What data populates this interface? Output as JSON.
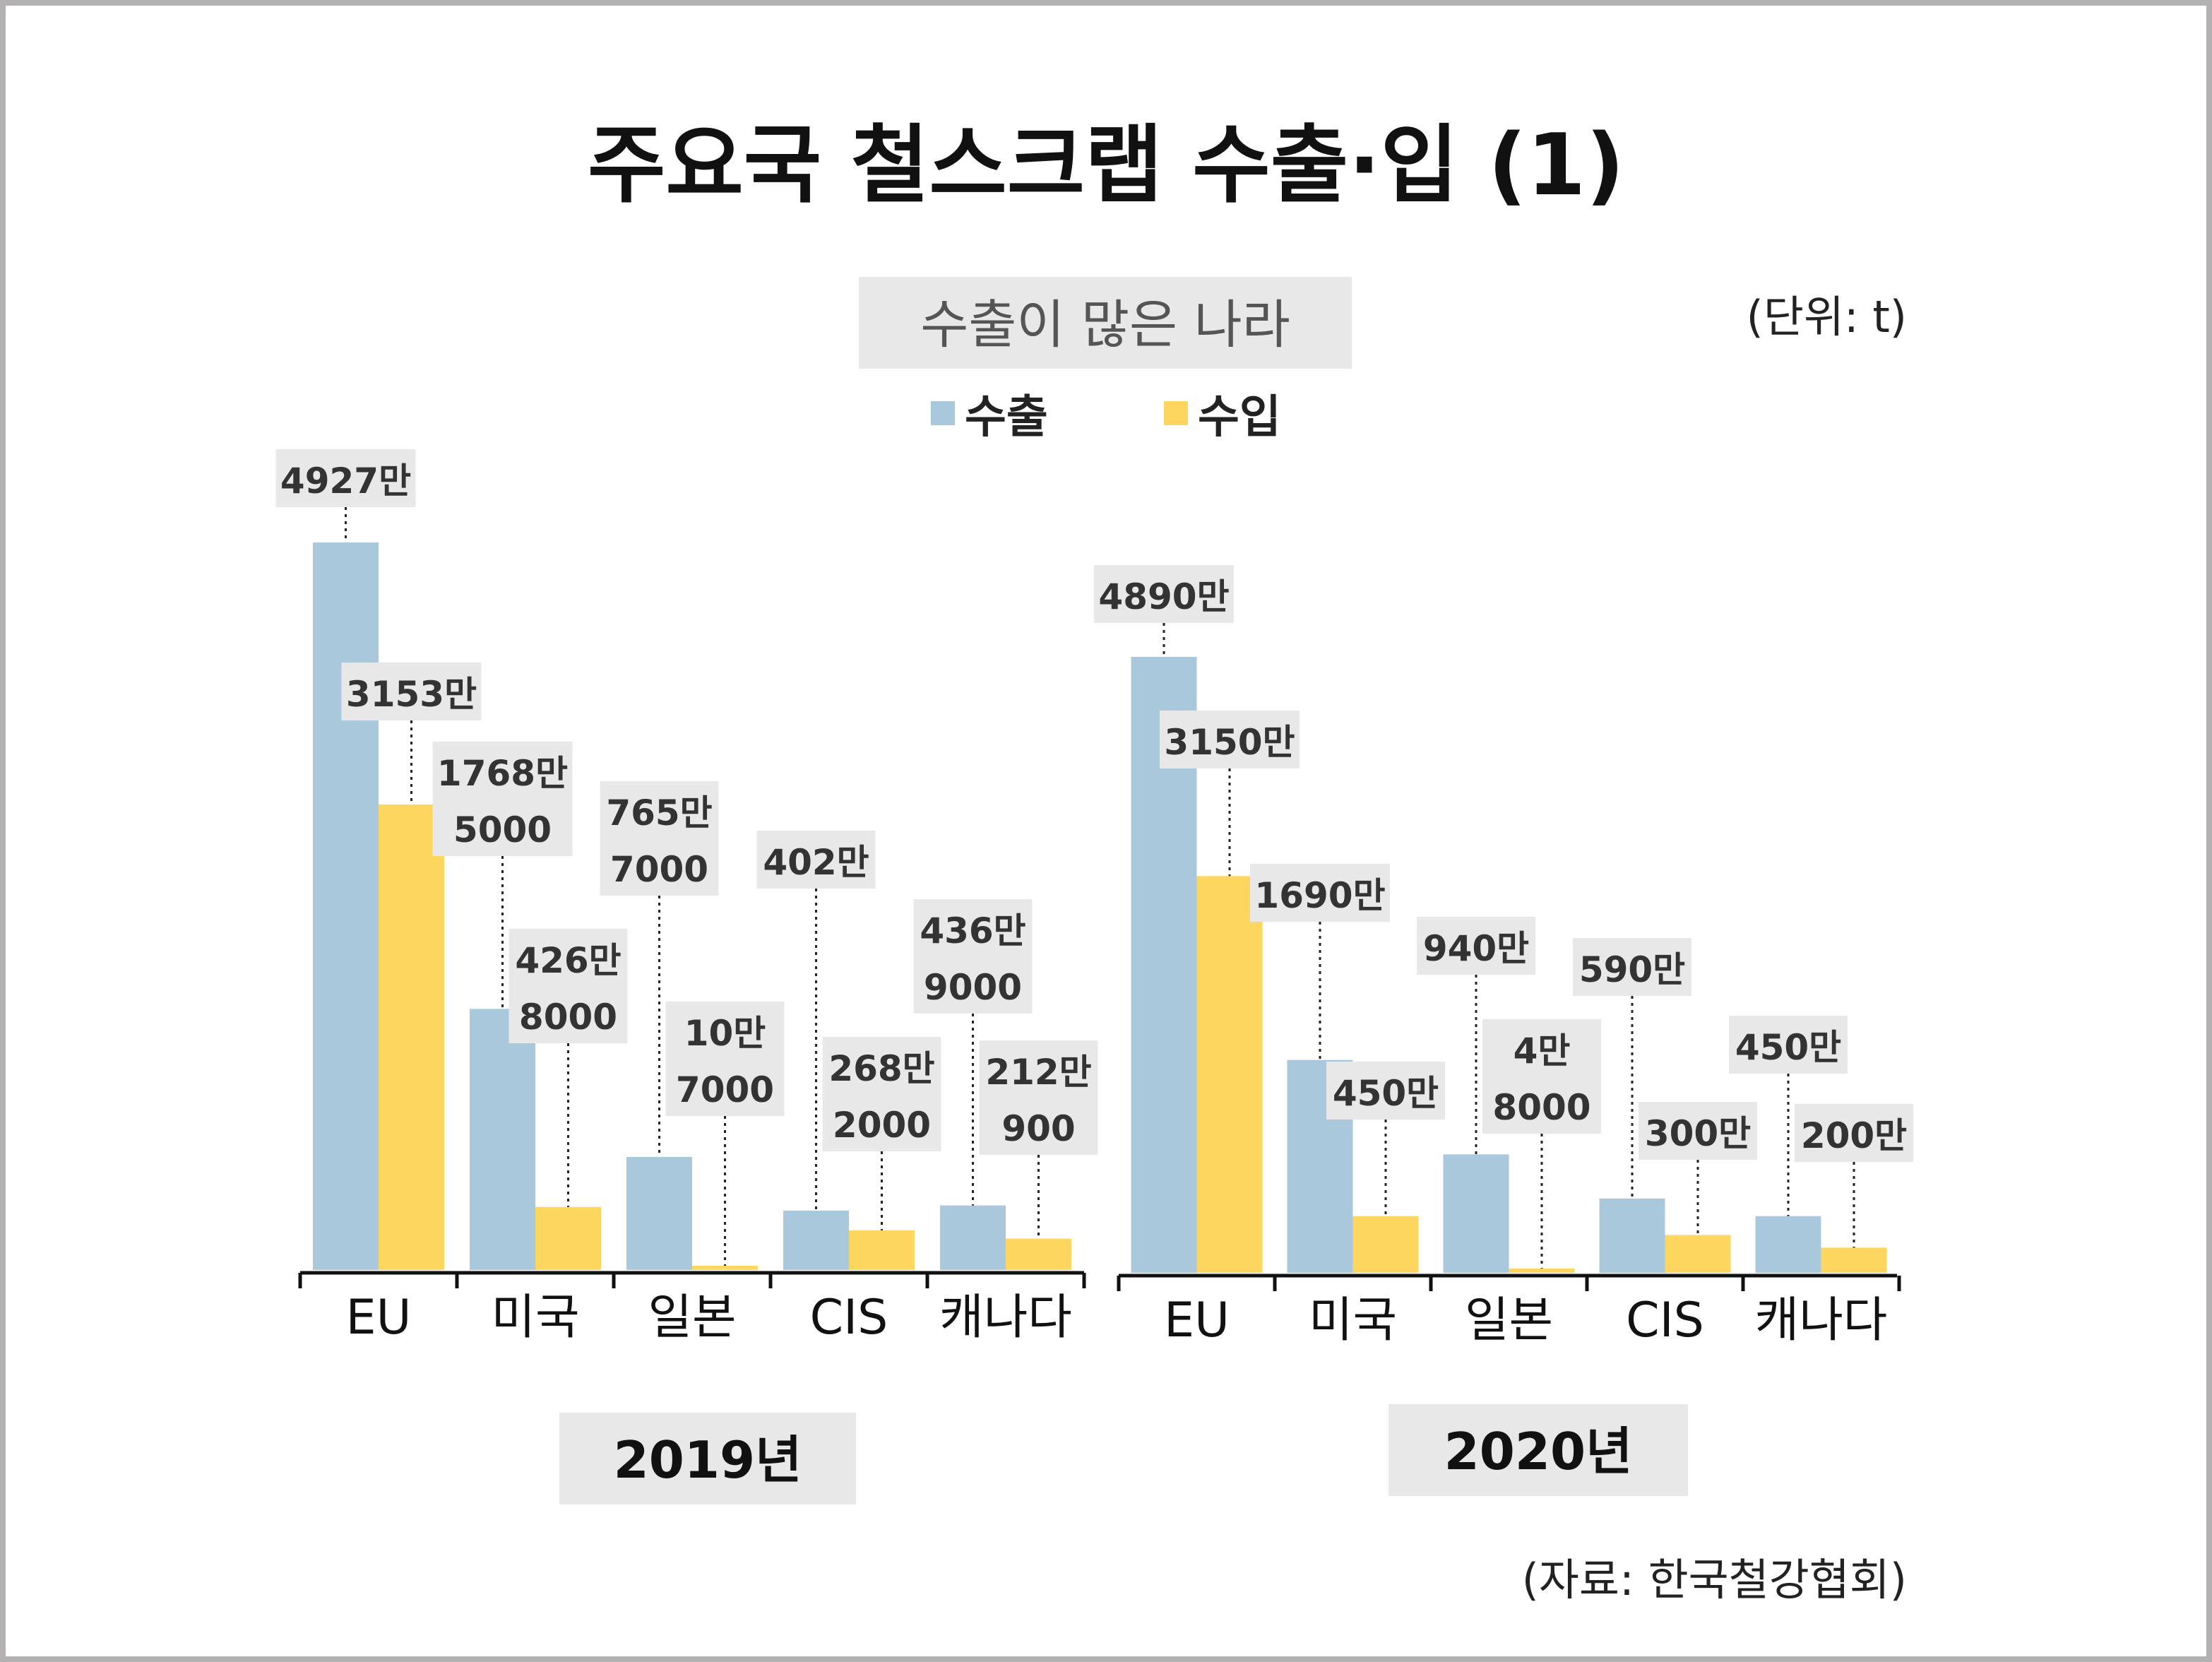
{
  "title": "주요국 철스크랩 수출·입 (1)",
  "subtitle": "수출이 많은 나라",
  "unit_label": "(단위: t)",
  "source": "(자료: 한국철강협회)",
  "colors": {
    "export": "#a9c8dc",
    "import": "#fdd660",
    "label_bg": "#e8e8e8",
    "axis": "#111111"
  },
  "chart_data": [
    {
      "type": "bar",
      "year_label": "2019년",
      "categories": [
        "EU",
        "미국",
        "일본",
        "CIS",
        "캐나다"
      ],
      "series": [
        {
          "name": "수출",
          "values": [
            49270000,
            17685000,
            7657000,
            4020000,
            4369000
          ],
          "labels": [
            [
              "4927만"
            ],
            [
              "1768만",
              "5000"
            ],
            [
              "765만",
              "7000"
            ],
            [
              "402만"
            ],
            [
              "436만",
              "9000"
            ]
          ]
        },
        {
          "name": "수입",
          "values": [
            31530000,
            4268000,
            107000,
            2682000,
            2120900
          ],
          "labels": [
            [
              "3153만"
            ],
            [
              "426만",
              "8000"
            ],
            [
              "10만",
              "7000"
            ],
            [
              "268만",
              "2000"
            ],
            [
              "212만",
              "900"
            ]
          ]
        }
      ]
    },
    {
      "type": "bar",
      "year_label": "2020년",
      "categories": [
        "EU",
        "미국",
        "일본",
        "CIS",
        "캐나다"
      ],
      "series": [
        {
          "name": "수출",
          "values": [
            48900000,
            16900000,
            9400000,
            5900000,
            4500000
          ],
          "labels": [
            [
              "4890만"
            ],
            [
              "1690만"
            ],
            [
              "940만"
            ],
            [
              "590만"
            ],
            [
              "450만"
            ]
          ]
        },
        {
          "name": "수입",
          "values": [
            31500000,
            4500000,
            48000,
            3000000,
            2000000
          ],
          "labels": [
            [
              "3150만"
            ],
            [
              "450만"
            ],
            [
              "4만",
              "8000"
            ],
            [
              "300만"
            ],
            [
              "200만"
            ]
          ]
        }
      ]
    }
  ]
}
